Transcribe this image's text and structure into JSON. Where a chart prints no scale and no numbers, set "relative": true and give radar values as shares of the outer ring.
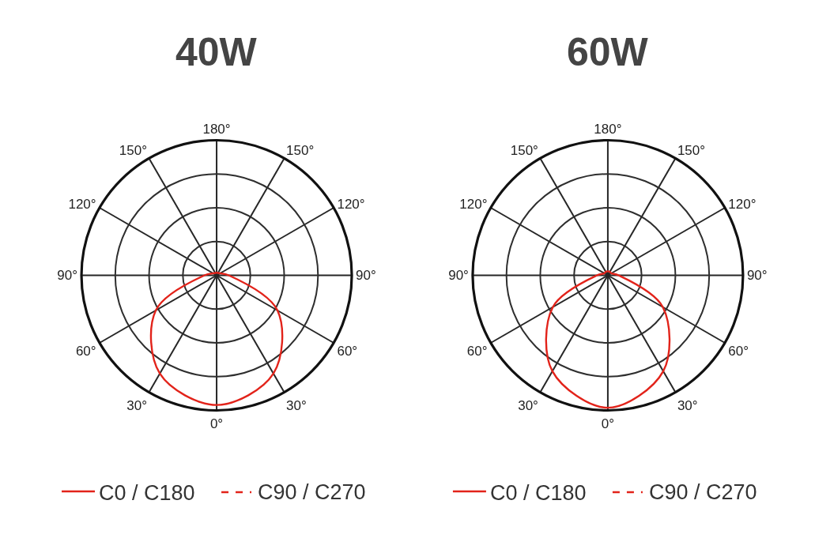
{
  "chart_data": [
    {
      "type": "radar",
      "title": "40W",
      "relative": true,
      "grid": true,
      "legend": "bottom",
      "annotations": [
        "C90 / C270"
      ],
      "categories": [
        "180°",
        "150°",
        "120°",
        "90°",
        "60°",
        "30°",
        "0°",
        "30°",
        "60°",
        "90°",
        "120°",
        "150°"
      ],
      "series": [
        {
          "name": "C0 / C180",
          "color": "#e2231a",
          "line_style": "solid",
          "values": [
            0.02,
            0.02,
            0.03,
            0.09,
            0.52,
            0.84,
            0.96,
            0.84,
            0.52,
            0.09,
            0.03,
            0.02
          ]
        }
      ]
    },
    {
      "type": "radar",
      "title": "60W",
      "relative": true,
      "grid": true,
      "legend": "bottom",
      "annotations": [
        "C90 / C270"
      ],
      "categories": [
        "180°",
        "150°",
        "120°",
        "90°",
        "60°",
        "30°",
        "0°",
        "30°",
        "60°",
        "90°",
        "120°",
        "150°"
      ],
      "series": [
        {
          "name": "C0 / C180",
          "color": "#e2231a",
          "line_style": "solid",
          "values": [
            0.03,
            0.03,
            0.03,
            0.08,
            0.47,
            0.82,
            0.98,
            0.82,
            0.47,
            0.08,
            0.03,
            0.03
          ]
        }
      ]
    }
  ]
}
